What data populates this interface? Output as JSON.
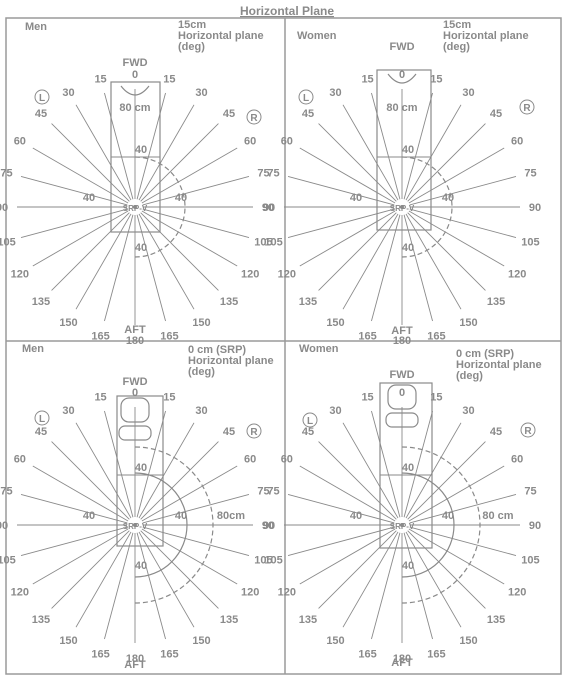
{
  "title": "Horizontal Plane",
  "colors": {
    "ink": "#8a8a8a",
    "frame": "#9a9a9a",
    "background": "#ffffff"
  },
  "left_marker": "L",
  "right_marker": "R",
  "panels": [
    {
      "id": "men-15cm",
      "group_label": "Men",
      "height_label": "15cm",
      "plane_label": "Horizontal plane",
      "unit_label": "(deg)",
      "fwd_label": "FWD",
      "aft_label": "AFT",
      "origin_label": "SRP-V",
      "angle_labels": [
        "0",
        "15",
        "30",
        "45",
        "60",
        "75",
        "90",
        "105",
        "120",
        "135",
        "150",
        "165",
        "180",
        "165",
        "150",
        "135",
        "120",
        "105",
        "90",
        "75",
        "60",
        "45",
        "30",
        "15"
      ],
      "distance_labels": [
        "80 cm",
        "40",
        "40",
        "40",
        "40"
      ]
    },
    {
      "id": "women-15cm",
      "group_label": "Women",
      "height_label": "15cm",
      "plane_label": "Horizontal plane",
      "unit_label": "(deg)",
      "fwd_label": "FWD",
      "aft_label": "AFT",
      "origin_label": "SRP-V",
      "angle_labels": [
        "0",
        "15",
        "30",
        "45",
        "60",
        "75",
        "90",
        "105",
        "120",
        "135",
        "150",
        "165",
        "180",
        "165",
        "150",
        "135",
        "120",
        "105",
        "90",
        "75",
        "60",
        "45",
        "30",
        "15"
      ],
      "distance_labels": [
        "80 cm",
        "40",
        "40",
        "40",
        "40"
      ]
    },
    {
      "id": "men-0cm",
      "group_label": "Men",
      "height_label": "0 cm (SRP)",
      "plane_label": "Horizontal plane",
      "unit_label": "(deg)",
      "fwd_label": "FWD",
      "aft_label": "AFT",
      "origin_label": "SRP-V",
      "angle_labels": [
        "0",
        "15",
        "30",
        "45",
        "60",
        "75",
        "90",
        "105",
        "120",
        "135",
        "150",
        "165",
        "180",
        "165",
        "150",
        "135",
        "120",
        "105",
        "90",
        "75",
        "60",
        "45",
        "30",
        "15"
      ],
      "distance_labels": [
        "80cm",
        "40",
        "40",
        "40",
        "40"
      ]
    },
    {
      "id": "women-0cm",
      "group_label": "Women",
      "height_label": "0 cm (SRP)",
      "plane_label": "Horizontal plane",
      "unit_label": "(deg)",
      "fwd_label": "FWD",
      "aft_label": "AFT",
      "origin_label": "SRP-V",
      "angle_labels": [
        "0",
        "15",
        "30",
        "45",
        "60",
        "75",
        "90",
        "105",
        "120",
        "135",
        "150",
        "165",
        "180",
        "165",
        "150",
        "135",
        "120",
        "105",
        "90",
        "75",
        "60",
        "45",
        "30",
        "15"
      ],
      "distance_labels": [
        "80 cm",
        "40",
        "40",
        "40",
        "40"
      ]
    }
  ]
}
